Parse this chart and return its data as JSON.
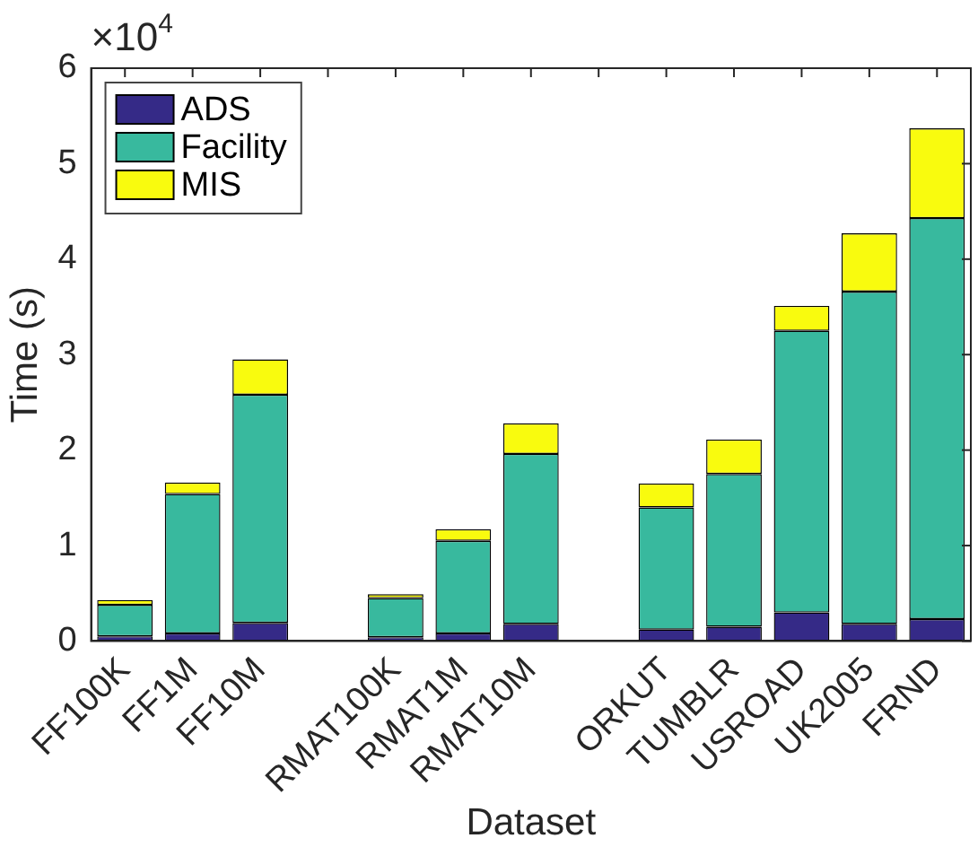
{
  "chart_data": {
    "type": "bar",
    "stacked": true,
    "xlabel": "Dataset",
    "ylabel": "Time (s)",
    "categories": [
      "FF100K",
      "FF1M",
      "FF10M",
      null,
      "RMAT100K",
      "RMAT1M",
      "RMAT10M",
      null,
      "ORKUT",
      "TUMBLR",
      "USROAD",
      "UK2005",
      "FRND"
    ],
    "series": [
      {
        "name": "ADS",
        "color": "#352a87",
        "values": [
          0.05,
          0.08,
          0.19,
          null,
          0.04,
          0.08,
          0.18,
          null,
          0.12,
          0.15,
          0.3,
          0.18,
          0.23
        ]
      },
      {
        "name": "Facility",
        "color": "#38b99e",
        "values": [
          0.33,
          1.46,
          2.39,
          null,
          0.41,
          0.97,
          1.78,
          null,
          1.28,
          1.6,
          2.95,
          3.48,
          4.2
        ]
      },
      {
        "name": "MIS",
        "color": "#f9fb0e",
        "values": [
          0.05,
          0.12,
          0.37,
          null,
          0.04,
          0.12,
          0.32,
          null,
          0.25,
          0.36,
          0.26,
          0.61,
          0.94
        ]
      }
    ],
    "ylim": [
      0,
      6
    ],
    "yticks": [
      0,
      1,
      2,
      3,
      4,
      5,
      6
    ],
    "annotations": [
      "×10$^{4}$"
    ],
    "legend": "top left",
    "grid": false
  }
}
